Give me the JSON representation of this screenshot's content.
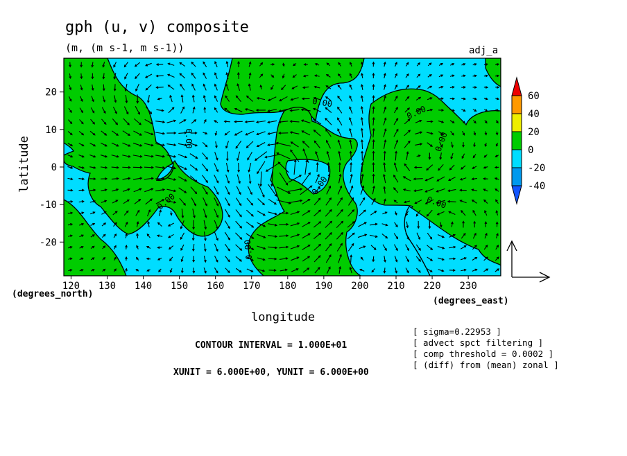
{
  "chart_data": {
    "type": "heatmap",
    "title": "gph (u, v) composite",
    "subtitle": "(m, (m s-1, m s-1))",
    "tag": "adj_a",
    "xlabel": "longitude",
    "ylabel": "latitude",
    "x_units": "(degrees_east)",
    "y_units": "(degrees_north)",
    "xlim": [
      118,
      239
    ],
    "ylim": [
      -29,
      29
    ],
    "x_ticks": [
      120,
      130,
      140,
      150,
      160,
      170,
      180,
      190,
      200,
      210,
      220,
      230
    ],
    "y_ticks": [
      20,
      10,
      0,
      -10,
      -20
    ],
    "contour_labels": [
      "0.00",
      "0.00",
      "0.00",
      "0.00",
      "0.00",
      "0.00",
      "0.00",
      "0.00"
    ],
    "colorbar": {
      "ticks": [
        "60",
        "40",
        "20",
        "0",
        "-20",
        "-40"
      ],
      "colors": [
        "#ee0000",
        "#ff9900",
        "#eeee00",
        "#00cc00",
        "#00ddff",
        "#0099ee",
        "#1155ff"
      ]
    },
    "fill_colors": {
      "negative": "#00ddff",
      "positive": "#00cc00"
    },
    "footer": {
      "contour_interval": "CONTOUR INTERVAL = 1.000E+01",
      "units": "XUNIT = 6.000E+00, YUNIT = 6.000E+00"
    },
    "notes": [
      "[ sigma=0.22953 ]",
      "[ advect spct filtering ]",
      "[ comp threshold = 0.0002 ]",
      "[ (diff) from (mean) zonal ]"
    ]
  }
}
